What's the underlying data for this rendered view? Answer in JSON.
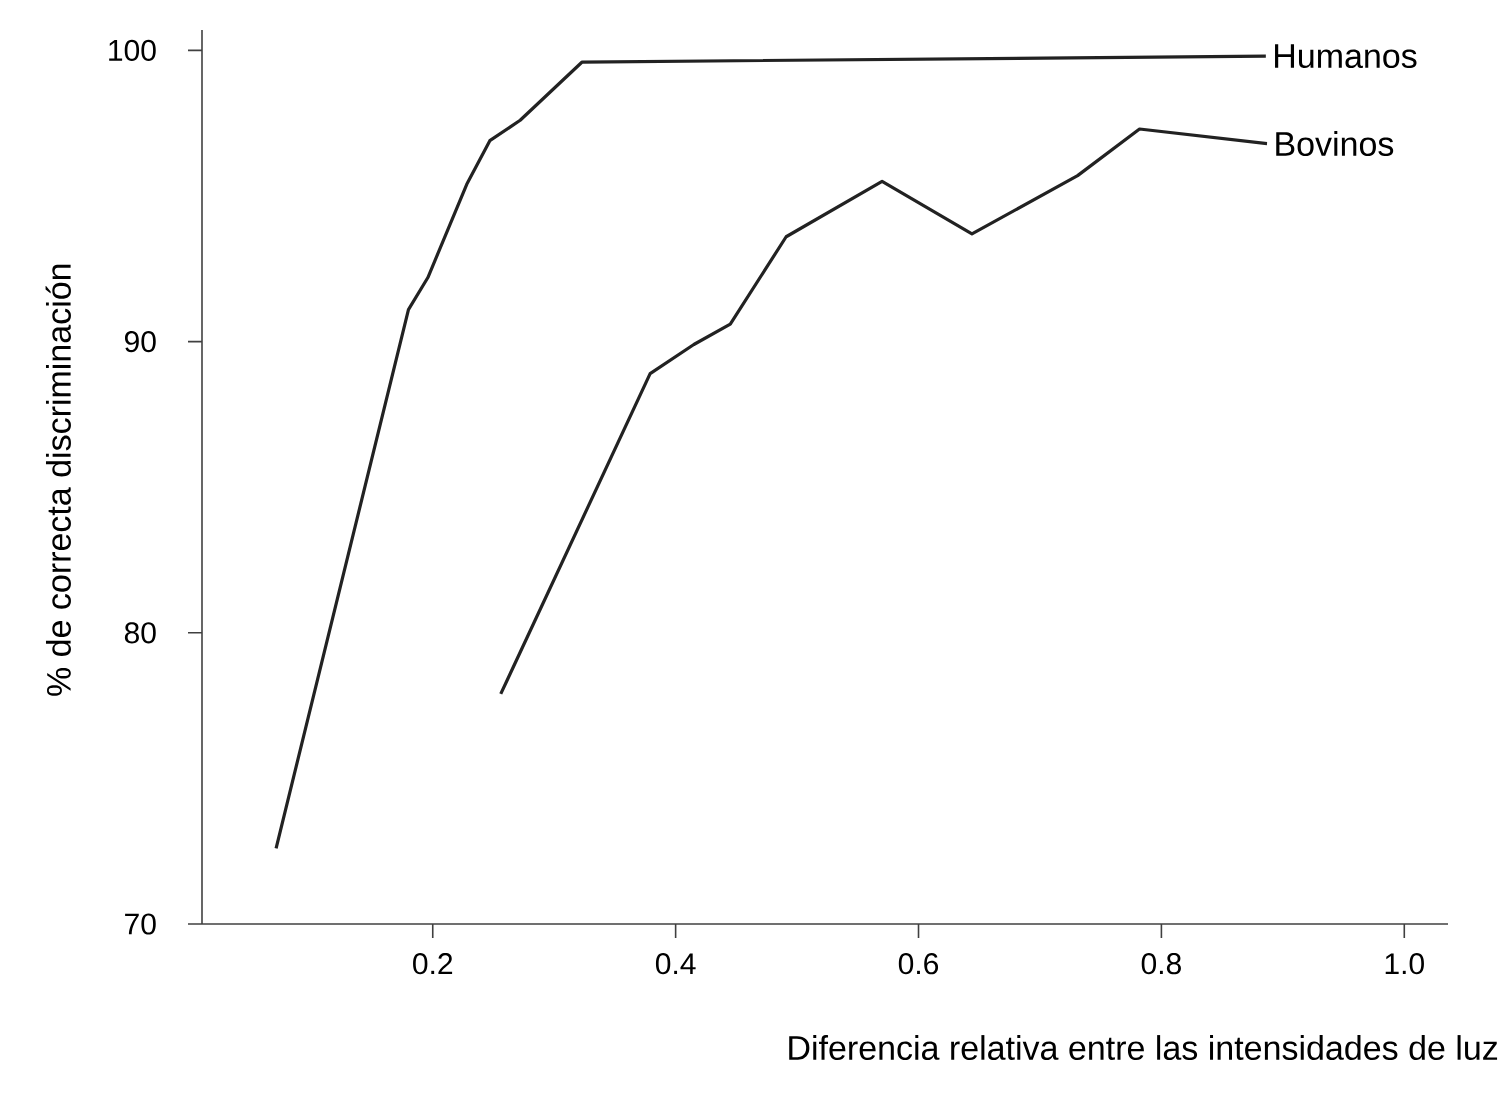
{
  "chart_data": {
    "type": "line",
    "xlabel": "Diferencia relativa entre las intensidades de luz",
    "ylabel": "% de correcta discriminación",
    "xlim": [
      0.01,
      1.036
    ],
    "ylim": [
      70,
      100.7
    ],
    "xticks": [
      0.2,
      0.4,
      0.6,
      0.8,
      {
        "value": 1.0,
        "label": "1.0"
      }
    ],
    "yticks": [
      70,
      80,
      90,
      100
    ],
    "grid": false,
    "legend": false,
    "marker": "none",
    "line_style": "solid",
    "series": [
      {
        "name": "Humanos",
        "color": "#222222",
        "x": [
          0.071,
          0.18,
          0.196,
          0.228,
          0.247,
          0.272,
          0.323,
          0.886
        ],
        "values": [
          72.6,
          91.1,
          92.2,
          95.4,
          96.9,
          97.6,
          99.6,
          99.8
        ]
      },
      {
        "name": "Bovinos",
        "color": "#222222",
        "x": [
          0.256,
          0.379,
          0.415,
          0.445,
          0.491,
          0.57,
          0.644,
          0.731,
          0.782,
          0.887
        ],
        "values": [
          77.9,
          88.9,
          89.9,
          90.6,
          93.6,
          95.5,
          93.7,
          95.7,
          97.3,
          96.8
        ]
      }
    ]
  }
}
